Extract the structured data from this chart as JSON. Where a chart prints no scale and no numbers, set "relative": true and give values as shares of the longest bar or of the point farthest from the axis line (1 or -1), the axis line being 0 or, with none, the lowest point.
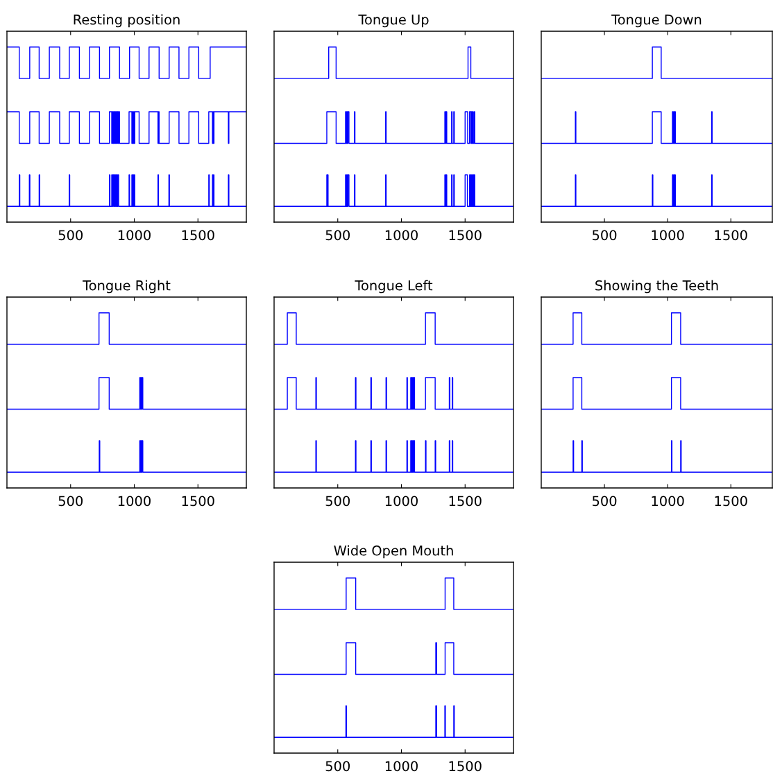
{
  "chart_data": [
    {
      "type": "step",
      "title": "Resting position",
      "relative": true,
      "xlim": [
        0,
        1880
      ],
      "xticks": [
        500,
        1000,
        1500
      ],
      "series": [
        {
          "color": "#0000ff",
          "x": [
            0,
            97,
            179,
            253,
            333,
            414,
            490,
            569,
            648,
            727,
            805,
            884,
            963,
            1038,
            1116,
            1195,
            1274,
            1351,
            1429,
            1506,
            1596,
            1880
          ],
          "values": [
            1,
            0.82,
            1,
            0.82,
            1,
            0.82,
            1,
            0.82,
            1,
            0.82,
            1,
            0.82,
            1,
            0.82,
            1,
            0.82,
            1,
            0.82,
            1,
            0.82,
            1,
            1
          ]
        },
        {
          "color": "#0000ff",
          "x": [
            0,
            97,
            179,
            253,
            333,
            414,
            490,
            569,
            648,
            727,
            805,
            823,
            829,
            835,
            841,
            847,
            853,
            859,
            865,
            871,
            877,
            884,
            959,
            981,
            985,
            990,
            995,
            1000,
            1004,
            1038,
            1116,
            1186,
            1190,
            1195,
            1274,
            1351,
            1429,
            1506,
            1585,
            1614,
            1618,
            1622,
            1626,
            1739,
            1743,
            1880
          ],
          "values": [
            0.63,
            0.45,
            0.63,
            0.45,
            0.63,
            0.45,
            0.63,
            0.45,
            0.63,
            0.45,
            0.63,
            0.45,
            0.63,
            0.45,
            0.63,
            0.45,
            0.63,
            0.45,
            0.63,
            0.45,
            0.63,
            0.45,
            0.63,
            0.45,
            0.63,
            0.45,
            0.63,
            0.45,
            0.63,
            0.45,
            0.63,
            0.45,
            0.63,
            0.45,
            0.63,
            0.45,
            0.63,
            0.45,
            0.63,
            0.45,
            0.63,
            0.45,
            0.63,
            0.45,
            0.63,
            0.63
          ]
        },
        {
          "color": "#0000ff",
          "x": [
            0,
            97,
            101,
            176,
            180,
            253,
            257,
            489,
            493,
            805,
            809,
            823,
            829,
            835,
            841,
            847,
            853,
            859,
            865,
            871,
            877,
            959,
            963,
            981,
            985,
            990,
            995,
            1000,
            1004,
            1186,
            1190,
            1272,
            1276,
            1585,
            1589,
            1614,
            1618,
            1622,
            1626,
            1739,
            1743,
            1880
          ],
          "values": [
            0.09,
            0.27,
            0.09,
            0.27,
            0.09,
            0.27,
            0.09,
            0.27,
            0.09,
            0.27,
            0.09,
            0.27,
            0.09,
            0.27,
            0.09,
            0.27,
            0.09,
            0.27,
            0.09,
            0.27,
            0.09,
            0.27,
            0.09,
            0.27,
            0.09,
            0.27,
            0.09,
            0.27,
            0.09,
            0.27,
            0.09,
            0.27,
            0.09,
            0.27,
            0.09,
            0.27,
            0.09,
            0.27,
            0.09,
            0.27,
            0.09,
            0.09
          ]
        }
      ]
    },
    {
      "type": "step",
      "title": "Tongue Up",
      "relative": true,
      "xlim": [
        0,
        1880
      ],
      "xticks": [
        500,
        1000,
        1500
      ],
      "series": [
        {
          "color": "#0000ff",
          "x": [
            0,
            429,
            487,
            1523,
            1545,
            1880
          ],
          "values": [
            0.82,
            1,
            0.82,
            1,
            0.82,
            0.82
          ]
        },
        {
          "color": "#0000ff",
          "x": [
            0,
            414,
            487,
            561,
            565,
            570,
            574,
            580,
            588,
            631,
            635,
            876,
            880,
            1341,
            1346,
            1352,
            1356,
            1394,
            1398,
            1411,
            1415,
            1500,
            1520,
            1535,
            1545,
            1550,
            1554,
            1560,
            1564,
            1572,
            1576,
            1880
          ],
          "values": [
            0.45,
            0.63,
            0.45,
            0.63,
            0.45,
            0.63,
            0.45,
            0.63,
            0.45,
            0.63,
            0.45,
            0.63,
            0.45,
            0.63,
            0.45,
            0.63,
            0.45,
            0.63,
            0.45,
            0.63,
            0.45,
            0.63,
            0.45,
            0.63,
            0.45,
            0.63,
            0.45,
            0.63,
            0.45,
            0.63,
            0.45,
            0.45
          ]
        },
        {
          "color": "#0000ff",
          "x": [
            0,
            414,
            418,
            420,
            424,
            561,
            565,
            570,
            574,
            580,
            588,
            631,
            635,
            876,
            880,
            1341,
            1346,
            1352,
            1356,
            1394,
            1398,
            1411,
            1415,
            1500,
            1518,
            1535,
            1539,
            1545,
            1549,
            1555,
            1559,
            1565,
            1569,
            1572,
            1576,
            1880
          ],
          "values": [
            0.09,
            0.27,
            0.09,
            0.27,
            0.09,
            0.27,
            0.09,
            0.27,
            0.09,
            0.27,
            0.09,
            0.27,
            0.09,
            0.27,
            0.09,
            0.27,
            0.09,
            0.27,
            0.09,
            0.27,
            0.09,
            0.27,
            0.09,
            0.27,
            0.09,
            0.27,
            0.09,
            0.27,
            0.09,
            0.27,
            0.09,
            0.27,
            0.09,
            0.27,
            0.09,
            0.09
          ]
        }
      ]
    },
    {
      "type": "step",
      "title": "Tongue Down",
      "relative": true,
      "xlim": [
        0,
        1828
      ],
      "xticks": [
        500,
        1000,
        1500
      ],
      "series": [
        {
          "color": "#0000ff",
          "x": [
            0,
            879,
            949,
            1828
          ],
          "values": [
            0.82,
            1,
            0.82,
            0.82
          ]
        },
        {
          "color": "#0000ff",
          "x": [
            0,
            270,
            274,
            879,
            949,
            1038,
            1043,
            1048,
            1053,
            1057,
            1061,
            1348,
            1352,
            1828
          ],
          "values": [
            0.45,
            0.63,
            0.45,
            0.63,
            0.45,
            0.63,
            0.45,
            0.63,
            0.45,
            0.63,
            0.45,
            0.63,
            0.45,
            0.45
          ]
        },
        {
          "color": "#0000ff",
          "x": [
            0,
            270,
            274,
            879,
            883,
            1038,
            1043,
            1048,
            1053,
            1057,
            1061,
            1348,
            1352,
            1828
          ],
          "values": [
            0.09,
            0.27,
            0.09,
            0.27,
            0.09,
            0.27,
            0.09,
            0.27,
            0.09,
            0.27,
            0.09,
            0.27,
            0.09,
            0.09
          ]
        }
      ]
    },
    {
      "type": "step",
      "title": "Tongue Right",
      "relative": true,
      "xlim": [
        0,
        1880
      ],
      "xticks": [
        500,
        1000,
        1500
      ],
      "series": [
        {
          "color": "#0000ff",
          "x": [
            0,
            723,
            803,
            1880
          ],
          "values": [
            0.82,
            1,
            0.82,
            0.82
          ]
        },
        {
          "color": "#0000ff",
          "x": [
            0,
            723,
            803,
            1043,
            1046,
            1049,
            1052,
            1055,
            1058,
            1061,
            1067,
            1880
          ],
          "values": [
            0.45,
            0.63,
            0.45,
            0.63,
            0.45,
            0.63,
            0.45,
            0.63,
            0.45,
            0.63,
            0.45,
            0.45
          ]
        },
        {
          "color": "#0000ff",
          "x": [
            0,
            725,
            729,
            1043,
            1046,
            1049,
            1052,
            1055,
            1058,
            1061,
            1067,
            1880
          ],
          "values": [
            0.09,
            0.27,
            0.09,
            0.27,
            0.09,
            0.27,
            0.09,
            0.27,
            0.09,
            0.27,
            0.09,
            0.09
          ]
        }
      ]
    },
    {
      "type": "step",
      "title": "Tongue Left",
      "relative": true,
      "xlim": [
        0,
        1880
      ],
      "xticks": [
        500,
        1000,
        1500
      ],
      "series": [
        {
          "color": "#0000ff",
          "x": [
            0,
            104,
            174,
            1189,
            1265,
            1880
          ],
          "values": [
            0.82,
            1,
            0.82,
            1,
            0.82,
            0.82
          ]
        },
        {
          "color": "#0000ff",
          "x": [
            0,
            104,
            174,
            328,
            332,
            639,
            643,
            760,
            764,
            879,
            883,
            1043,
            1047,
            1073,
            1077,
            1081,
            1085,
            1089,
            1093,
            1097,
            1103,
            1189,
            1265,
            1376,
            1380,
            1399,
            1403,
            1880
          ],
          "values": [
            0.45,
            0.63,
            0.45,
            0.63,
            0.45,
            0.63,
            0.45,
            0.63,
            0.45,
            0.63,
            0.45,
            0.63,
            0.45,
            0.63,
            0.45,
            0.63,
            0.45,
            0.63,
            0.45,
            0.63,
            0.45,
            0.63,
            0.45,
            0.63,
            0.45,
            0.63,
            0.45,
            0.45
          ]
        },
        {
          "color": "#0000ff",
          "x": [
            0,
            328,
            332,
            639,
            643,
            760,
            764,
            879,
            883,
            1043,
            1047,
            1073,
            1077,
            1081,
            1085,
            1089,
            1093,
            1097,
            1103,
            1189,
            1193,
            1265,
            1269,
            1376,
            1380,
            1399,
            1403,
            1880
          ],
          "values": [
            0.09,
            0.27,
            0.09,
            0.27,
            0.09,
            0.27,
            0.09,
            0.27,
            0.09,
            0.27,
            0.09,
            0.27,
            0.09,
            0.27,
            0.09,
            0.27,
            0.09,
            0.27,
            0.09,
            0.27,
            0.09,
            0.27,
            0.09,
            0.27,
            0.09,
            0.27,
            0.09,
            0.09
          ]
        }
      ]
    },
    {
      "type": "step",
      "title": "Showing the Teeth",
      "relative": true,
      "xlim": [
        0,
        1828
      ],
      "xticks": [
        500,
        1000,
        1500
      ],
      "series": [
        {
          "color": "#0000ff",
          "x": [
            0,
            252,
            321,
            1030,
            1103,
            1828
          ],
          "values": [
            0.82,
            1,
            0.82,
            1,
            0.82,
            0.82
          ]
        },
        {
          "color": "#0000ff",
          "x": [
            0,
            252,
            321,
            1030,
            1103,
            1828
          ],
          "values": [
            0.45,
            0.63,
            0.45,
            0.63,
            0.45,
            0.45
          ]
        },
        {
          "color": "#0000ff",
          "x": [
            0,
            252,
            256,
            321,
            325,
            1030,
            1034,
            1103,
            1107,
            1828
          ],
          "values": [
            0.09,
            0.27,
            0.09,
            0.27,
            0.09,
            0.27,
            0.09,
            0.27,
            0.09,
            0.09
          ]
        }
      ]
    },
    {
      "type": "step",
      "title": "Wide Open Mouth",
      "relative": true,
      "xlim": [
        0,
        1880
      ],
      "xticks": [
        500,
        1000,
        1500
      ],
      "series": [
        {
          "color": "#0000ff",
          "x": [
            0,
            566,
            641,
            1343,
            1411,
            1880
          ],
          "values": [
            0.82,
            1,
            0.82,
            1,
            0.82,
            0.82
          ]
        },
        {
          "color": "#0000ff",
          "x": [
            0,
            566,
            641,
            1270,
            1276,
            1343,
            1411,
            1880
          ],
          "values": [
            0.45,
            0.63,
            0.45,
            0.63,
            0.45,
            0.63,
            0.45,
            0.45
          ]
        },
        {
          "color": "#0000ff",
          "x": [
            0,
            564,
            568,
            1270,
            1276,
            1341,
            1345,
            1411,
            1415,
            1880
          ],
          "values": [
            0.09,
            0.27,
            0.09,
            0.27,
            0.09,
            0.27,
            0.09,
            0.27,
            0.09,
            0.09
          ]
        }
      ]
    }
  ]
}
